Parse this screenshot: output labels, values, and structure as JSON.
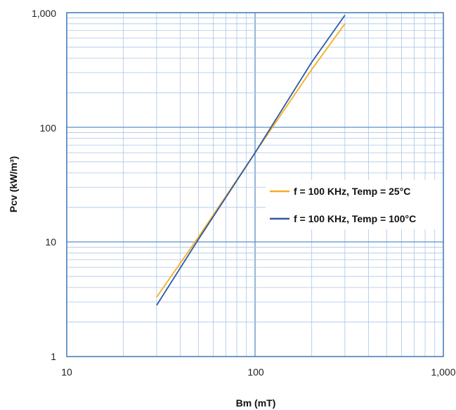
{
  "chart_data": {
    "type": "line",
    "xscale": "log",
    "yscale": "log",
    "xlim": [
      10,
      1000
    ],
    "ylim": [
      1,
      1000
    ],
    "xticks": [
      "10",
      "100",
      "1,000"
    ],
    "yticks": [
      "1",
      "10",
      "100",
      "1,000"
    ],
    "xlabel": "Bm (mT)",
    "ylabel": "Pcv (kW/m³)",
    "grid": true,
    "legend_position": "right",
    "colors": {
      "grid_major": "#5b8fc9",
      "grid_minor": "#a9c6e6",
      "frame": "#4a80c0"
    },
    "series": [
      {
        "name": "f = 100 KHz, Temp = 25°C",
        "color": "#f2b01e",
        "x": [
          30,
          50,
          100,
          200,
          300
        ],
        "y": [
          3.3,
          11,
          60,
          320,
          800
        ]
      },
      {
        "name": "f = 100 KHz, Temp = 100°C",
        "color": "#2f59a8",
        "x": [
          30,
          50,
          100,
          200,
          300
        ],
        "y": [
          2.8,
          10.5,
          60,
          370,
          950
        ]
      }
    ]
  }
}
